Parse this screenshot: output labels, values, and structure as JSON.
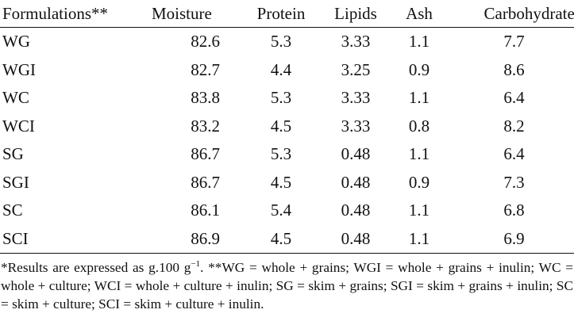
{
  "table": {
    "headers": [
      "Formulations**",
      "Moisture",
      "Protein",
      "Lipids",
      "Ash",
      "Carbohydrates"
    ],
    "rows": [
      [
        "WG",
        "82.6",
        "5.3",
        "3.33",
        "1.1",
        "7.7"
      ],
      [
        "WGI",
        "82.7",
        "4.4",
        "3.25",
        "0.9",
        "8.6"
      ],
      [
        "WC",
        "83.8",
        "5.3",
        "3.33",
        "1.1",
        "6.4"
      ],
      [
        "WCI",
        "83.2",
        "4.5",
        "3.33",
        "0.8",
        "8.2"
      ],
      [
        "SG",
        "86.7",
        "5.3",
        "0.48",
        "1.1",
        "6.4"
      ],
      [
        "SGI",
        "86.7",
        "4.5",
        "0.48",
        "0.9",
        "7.3"
      ],
      [
        "SC",
        "86.1",
        "5.4",
        "0.48",
        "1.1",
        "6.8"
      ],
      [
        "SCI",
        "86.9",
        "4.5",
        "0.48",
        "1.1",
        "6.9"
      ]
    ]
  },
  "footnote": {
    "part1": "*Results are expressed as g.100 g",
    "sup": "−1",
    "part2": ". **WG = whole + grains; WGI = whole + grains + inulin; WC = whole + culture; WCI = whole + culture + inulin; SG = skim + grains; SGI = skim + grains + inulin; SC = skim + culture; SCI = skim + culture + inulin."
  }
}
